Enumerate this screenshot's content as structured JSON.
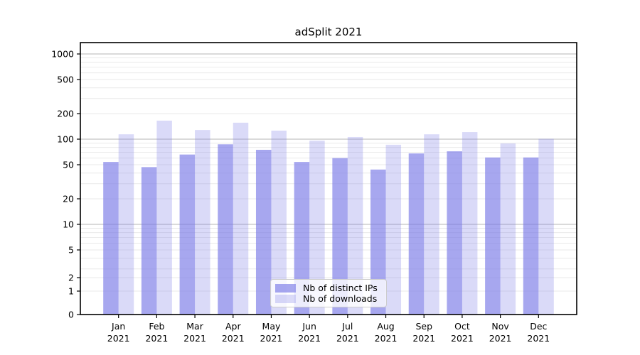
{
  "chart_data": {
    "type": "bar",
    "title": "adSplit 2021",
    "yscale": "symlog",
    "categories": [
      "Jan",
      "Feb",
      "Mar",
      "Apr",
      "May",
      "Jun",
      "Jul",
      "Aug",
      "Sep",
      "Oct",
      "Nov",
      "Dec"
    ],
    "category_year": "2021",
    "series": [
      {
        "name": "Nb of distinct IPs",
        "color": "rgba(121,121,231,0.66)",
        "values": [
          54,
          47,
          66,
          87,
          75,
          54,
          60,
          44,
          68,
          72,
          61,
          61
        ]
      },
      {
        "name": "Nb of downloads",
        "color": "rgba(121,121,231,0.28)",
        "values": [
          114,
          165,
          128,
          156,
          126,
          96,
          106,
          86,
          114,
          121,
          89,
          101
        ]
      }
    ],
    "yticks": [
      0,
      1,
      2,
      5,
      10,
      20,
      50,
      100,
      200,
      500,
      1000
    ],
    "ylim": [
      0,
      1260
    ],
    "xlabel": "",
    "ylabel": "",
    "grid": "horizontal, minor log lines faint, major decades darker",
    "legend_position": "lower center"
  },
  "colors": {
    "grid_minor": "#e9e9e9",
    "grid_major": "#b4b4b4",
    "axis": "#000000",
    "text": "#000000"
  }
}
